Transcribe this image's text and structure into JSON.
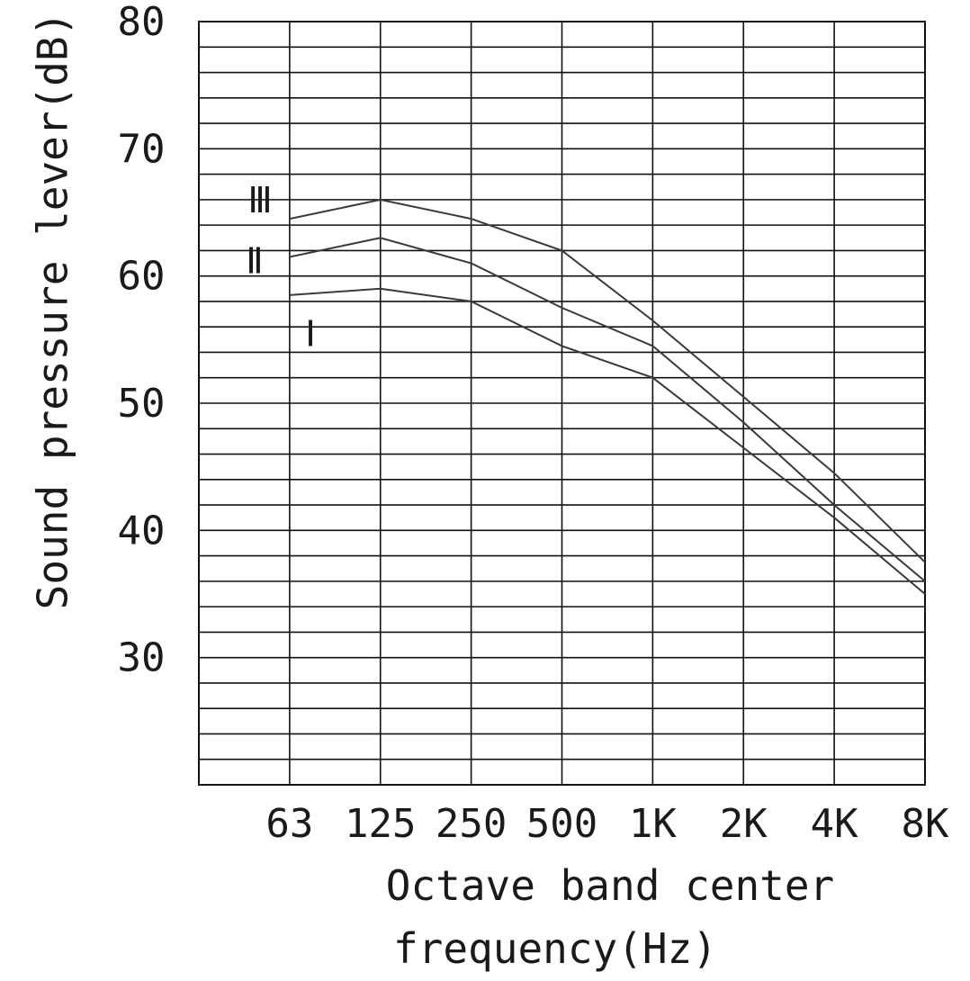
{
  "chart_data": {
    "type": "line",
    "categories": [
      "63",
      "125",
      "250",
      "500",
      "1K",
      "2K",
      "4K",
      "8K"
    ],
    "xlabel_lines": [
      "Octave band center",
      "frequency(Hz)"
    ],
    "ylabel": "Sound pressure lever(dB)",
    "ylim": [
      20,
      80
    ],
    "yticks": [
      "80",
      "70",
      "60",
      "50",
      "40",
      "30"
    ],
    "ytick_values": [
      80,
      70,
      60,
      50,
      40,
      30
    ],
    "grid": true,
    "legend": "inline-left",
    "series": [
      {
        "name": "Ⅲ",
        "values": [
          64.5,
          66,
          64.5,
          62,
          56.5,
          50.5,
          44.5,
          37.5
        ]
      },
      {
        "name": "Ⅱ",
        "values": [
          61.5,
          63,
          61,
          57.5,
          54.5,
          48.5,
          42,
          36
        ]
      },
      {
        "name": "Ⅰ",
        "values": [
          58.5,
          59,
          58,
          54.5,
          52,
          46.5,
          41,
          35
        ]
      }
    ],
    "colors": {
      "line": "#3a3a3a",
      "grid": "#111111",
      "text": "#1a1a1a"
    }
  }
}
